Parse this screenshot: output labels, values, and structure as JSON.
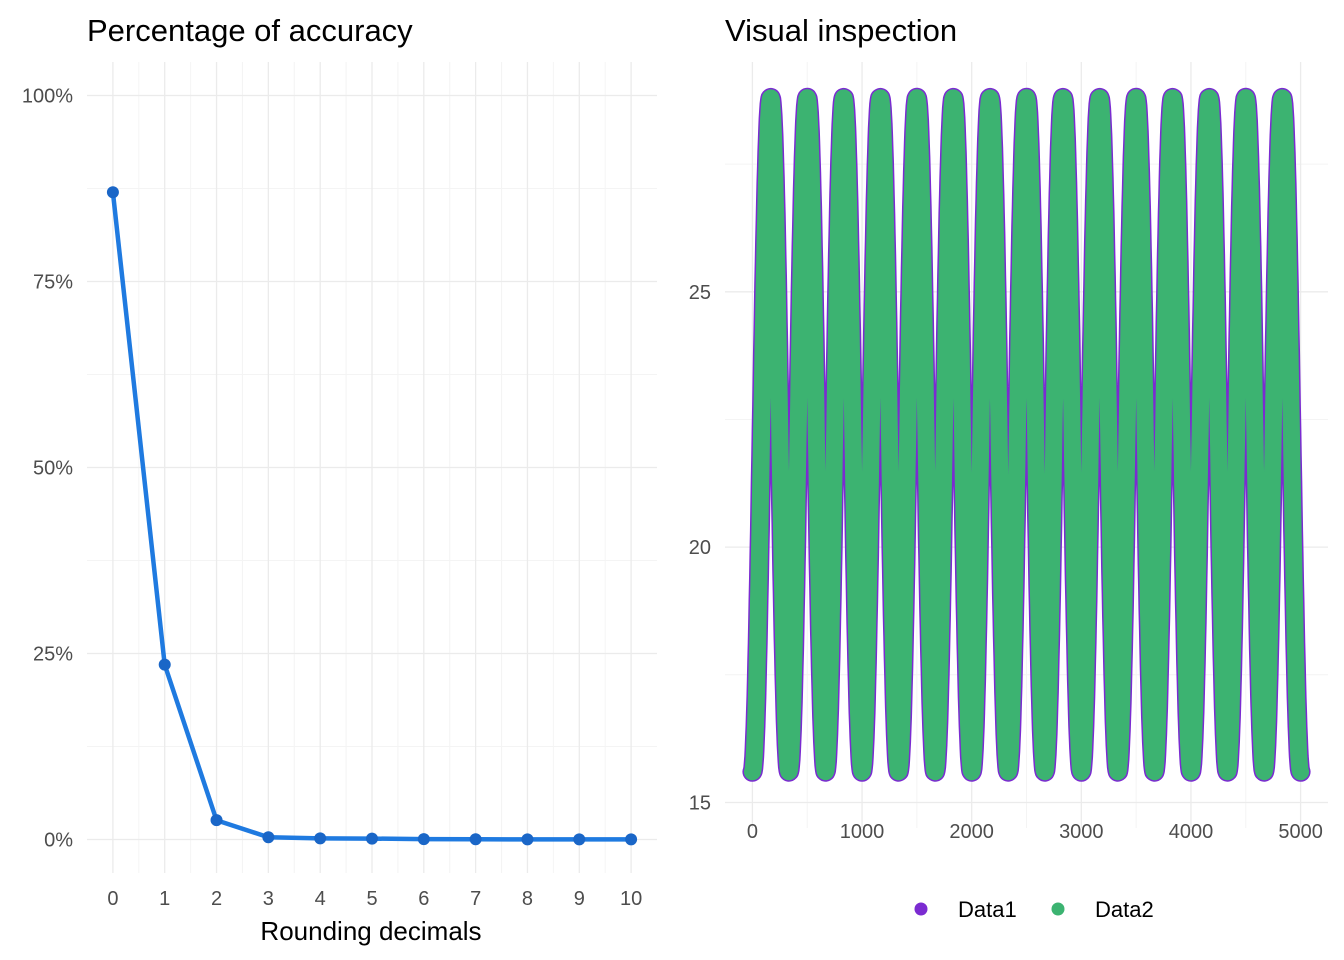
{
  "colors": {
    "line": "#1f7ae0",
    "point": "#1a66c7",
    "data1": "#7b2bd1",
    "data2": "#3cb371",
    "grid_major": "#ebebeb",
    "grid_minor": "#f4f4f4"
  },
  "chart_data": [
    {
      "type": "line",
      "title": "Percentage of accuracy",
      "xlabel": "Rounding decimals",
      "ylabel": "",
      "x": [
        0,
        1,
        2,
        3,
        4,
        5,
        6,
        7,
        8,
        9,
        10
      ],
      "x_tick_labels": [
        "0",
        "1",
        "2",
        "3",
        "4",
        "5",
        "6",
        "7",
        "8",
        "9",
        "10"
      ],
      "values": [
        87.0,
        23.5,
        2.6,
        0.3,
        0.15,
        0.12,
        0.05,
        0.03,
        0.02,
        0.02,
        0.02
      ],
      "y_ticks": [
        0,
        25,
        50,
        75,
        100
      ],
      "y_tick_labels": [
        "0%",
        "25%",
        "50%",
        "75%",
        "100%"
      ],
      "ylim": [
        -4.5,
        104.5
      ],
      "xlim": [
        -0.5,
        10.5
      ],
      "grid": true,
      "legend": "none"
    },
    {
      "type": "scatter",
      "title": "Visual inspection",
      "xlabel": "",
      "ylabel": "",
      "xlim": [
        -250,
        5250
      ],
      "ylim": [
        14.5,
        29.5
      ],
      "x_ticks": [
        0,
        1000,
        2000,
        3000,
        4000,
        5000
      ],
      "x_tick_labels": [
        "0",
        "1000",
        "2000",
        "3000",
        "4000",
        "5000"
      ],
      "y_ticks": [
        15,
        20,
        25
      ],
      "y_tick_labels": [
        "15",
        "20",
        "25"
      ],
      "grid": true,
      "legend": "bottom",
      "signal": {
        "n_points": 5000,
        "n_cycles": 15,
        "min": 15.6,
        "max": 28.8
      },
      "series": [
        {
          "name": "Data1",
          "color": "#7b2bd1"
        },
        {
          "name": "Data2",
          "color": "#3cb371"
        }
      ]
    }
  ]
}
